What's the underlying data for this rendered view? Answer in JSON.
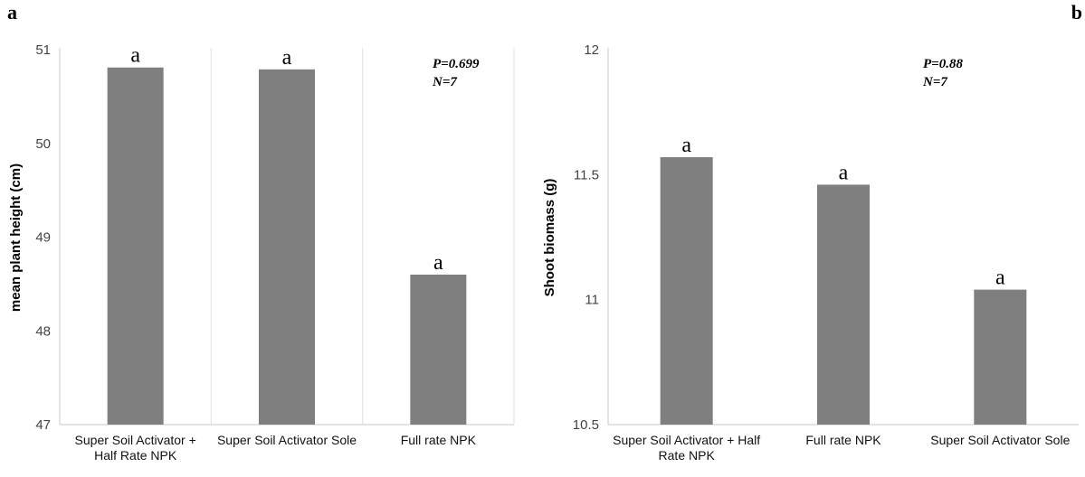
{
  "colors": {
    "bar": "#7f7f7f",
    "axis": "#c8c8c8",
    "divider": "#e2e2e2"
  },
  "chart_data": [
    {
      "type": "bar",
      "panel_label": "a",
      "ylabel": "mean plant height (cm)",
      "xlabel": "",
      "categories": [
        "Super Soil Activator + Half Rate NPK",
        "Super Soil Activator Sole",
        "Full rate NPK"
      ],
      "category_lines": [
        [
          "Super Soil Activator +",
          "Half Rate NPK"
        ],
        [
          "Super Soil Activator Sole"
        ],
        [
          "Full rate NPK"
        ]
      ],
      "values": [
        50.81,
        50.79,
        48.6
      ],
      "significance_letters": [
        "a",
        "a",
        "a"
      ],
      "ylim": [
        47,
        51
      ],
      "yticks": [
        "47",
        "48",
        "49",
        "50",
        "51"
      ],
      "annotation": [
        "P=0.699",
        "N=7"
      ],
      "grid": "vertical category dividers",
      "legend": "none"
    },
    {
      "type": "bar",
      "panel_label": "b",
      "ylabel": "Shoot biomass (g)",
      "xlabel": "",
      "categories": [
        "Super Soil Activator + Half Rate NPK",
        "Full rate NPK",
        "Super Soil Activator Sole"
      ],
      "category_lines": [
        [
          "Super Soil Activator + Half",
          "Rate NPK"
        ],
        [
          "Full rate NPK"
        ],
        [
          "Super Soil Activator Sole"
        ]
      ],
      "values": [
        11.57,
        11.46,
        11.04
      ],
      "significance_letters": [
        "a",
        "a",
        "a"
      ],
      "ylim": [
        10.5,
        12
      ],
      "yticks": [
        "10.5",
        "11",
        "11.5",
        "12"
      ],
      "annotation": [
        "P=0.88",
        "N=7"
      ],
      "grid": "none",
      "legend": "none"
    }
  ]
}
